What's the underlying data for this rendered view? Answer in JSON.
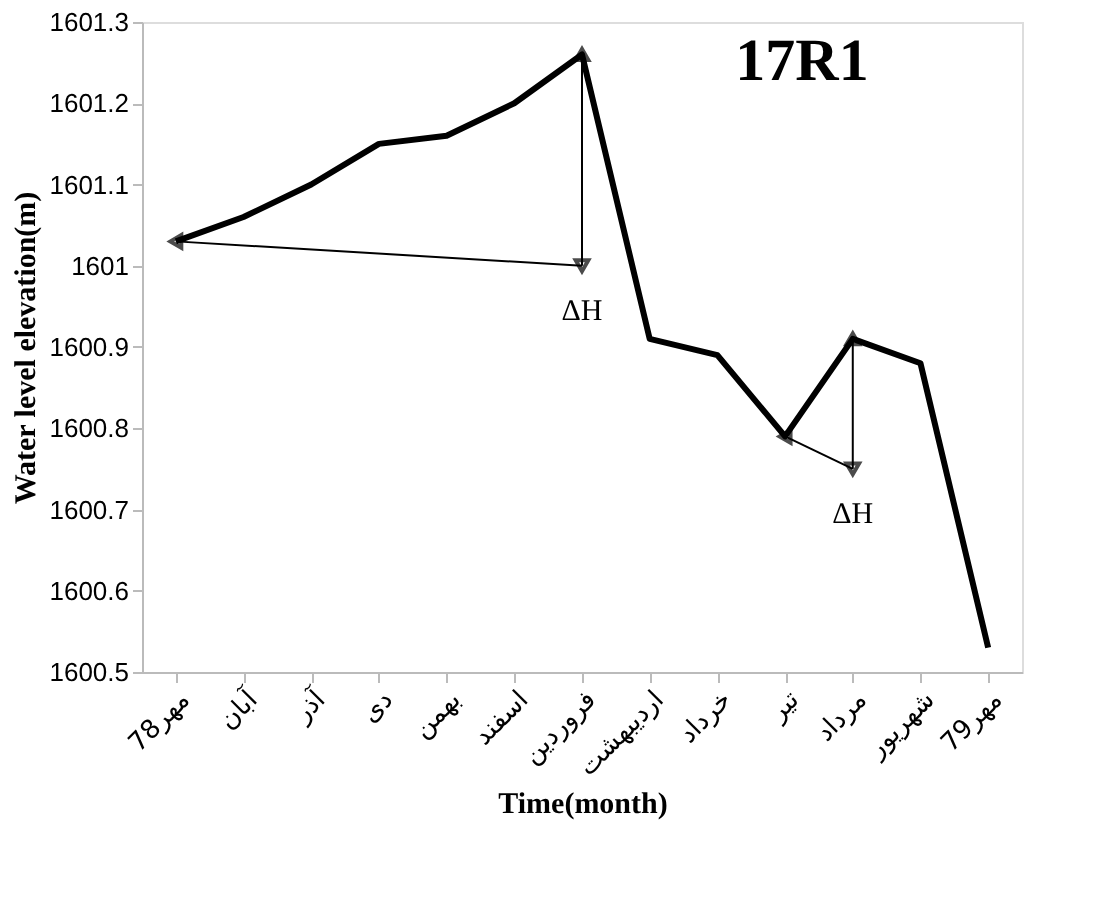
{
  "chart_data": {
    "type": "line",
    "title": "17R1",
    "xlabel": "Time(month)",
    "ylabel": "Water level elevation(m)",
    "categories": [
      "مهر78",
      "آبان",
      "آذر",
      "دی",
      "بهمن",
      "اسفند",
      "فروردین",
      "اردیبهشت",
      "خرداد",
      "تیر",
      "مرداد",
      "شهریور",
      "مهر79"
    ],
    "series": [
      {
        "color": "#000000",
        "values": [
          1601.03,
          1601.06,
          1601.1,
          1601.15,
          1601.16,
          1601.2,
          1601.26,
          1600.91,
          1600.89,
          1600.79,
          1600.91,
          1600.88,
          1600.53
        ]
      }
    ],
    "ylim": [
      1600.5,
      1601.3
    ],
    "yticks": [
      1600.5,
      1600.6,
      1600.7,
      1600.8,
      1600.9,
      1601,
      1601.1,
      1601.2,
      1601.3
    ],
    "grid": false,
    "marker": "none",
    "line_style": "solid",
    "annotations": [
      {
        "text": "ΔH",
        "x": "فروردین",
        "y": 1601.0
      },
      {
        "text": "ΔH",
        "x": "مرداد",
        "y": 1600.75
      }
    ]
  }
}
